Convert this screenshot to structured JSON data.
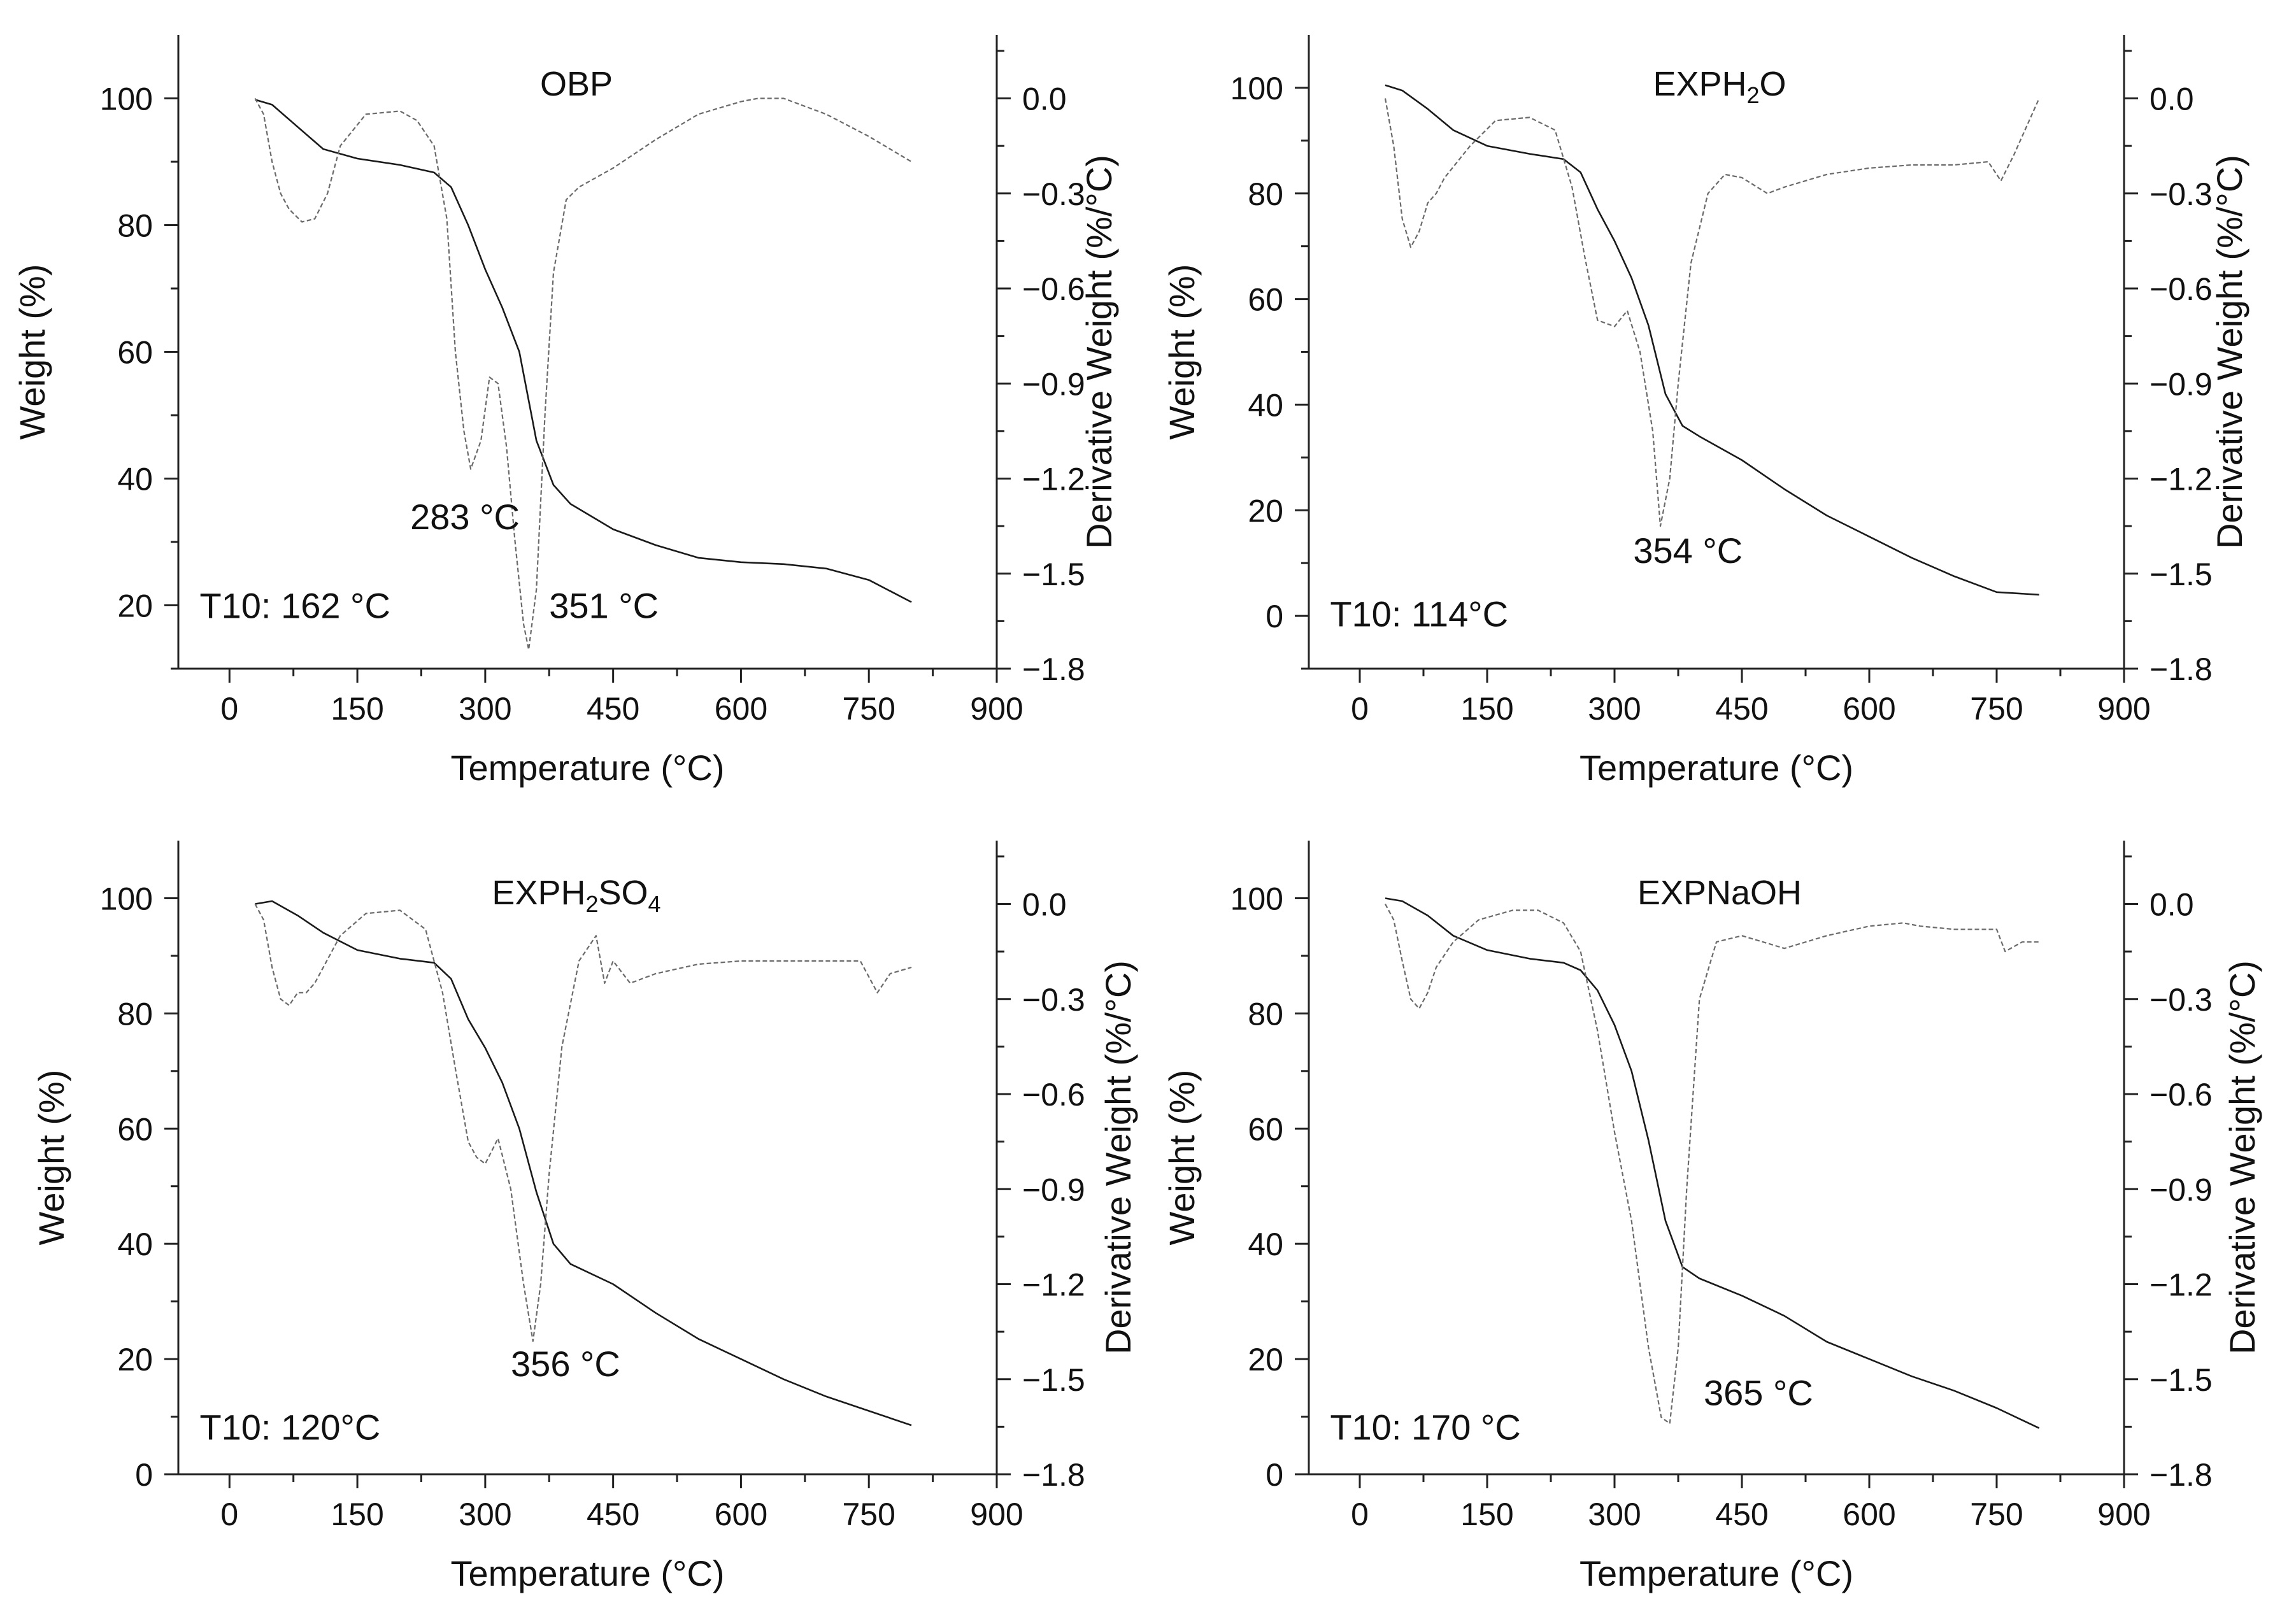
{
  "figure": {
    "x_label": "Temperature (°C)",
    "y_left_label": "Weight (%)",
    "y_right_label": "Derivative Weight (%/°C)"
  },
  "chart_data": [
    {
      "type": "line",
      "title": "OBP",
      "title_parts": [
        {
          "t": "OBP",
          "sub": false
        }
      ],
      "xlabel": "Temperature (°C)",
      "ylabel": "Weight (%)",
      "y2label": "Derivative Weight (%/°C)",
      "xlim": [
        -60,
        900
      ],
      "ylim": [
        10,
        110
      ],
      "y2lim": [
        -1.8,
        0.2
      ],
      "xticks": [
        0,
        150,
        300,
        450,
        600,
        750,
        900
      ],
      "yticks": [
        20,
        40,
        60,
        80,
        100
      ],
      "y2ticks": [
        0.0,
        -0.3,
        -0.6,
        -0.9,
        -1.2,
        -1.5,
        -1.8
      ],
      "series": [
        {
          "name": "Weight",
          "axis": "left",
          "x": [
            30,
            50,
            80,
            110,
            150,
            200,
            240,
            260,
            280,
            300,
            320,
            340,
            360,
            380,
            400,
            450,
            500,
            550,
            600,
            650,
            700,
            750,
            800
          ],
          "y": [
            99.8,
            99,
            95.5,
            92,
            90.5,
            89.5,
            88.3,
            86,
            80,
            73,
            67,
            60,
            46,
            39,
            36,
            32,
            29.5,
            27.5,
            26.8,
            26.5,
            25.8,
            24,
            20.5
          ]
        },
        {
          "name": "Derivative Weight",
          "axis": "right",
          "x": [
            30,
            40,
            50,
            60,
            70,
            85,
            100,
            115,
            130,
            160,
            200,
            220,
            240,
            255,
            265,
            275,
            283,
            295,
            305,
            315,
            325,
            335,
            345,
            351,
            360,
            370,
            380,
            395,
            410,
            450,
            500,
            550,
            600,
            620,
            650,
            700,
            750,
            800
          ],
          "y": [
            0.0,
            -0.05,
            -0.2,
            -0.3,
            -0.35,
            -0.39,
            -0.38,
            -0.3,
            -0.15,
            -0.05,
            -0.04,
            -0.07,
            -0.15,
            -0.38,
            -0.8,
            -1.05,
            -1.17,
            -1.08,
            -0.88,
            -0.9,
            -1.1,
            -1.4,
            -1.66,
            -1.74,
            -1.55,
            -1.0,
            -0.55,
            -0.32,
            -0.28,
            -0.22,
            -0.13,
            -0.05,
            -0.01,
            0.0,
            0.0,
            -0.05,
            -0.12,
            -0.2
          ]
        }
      ],
      "annotations": [
        {
          "text": "283 °C",
          "x": 212,
          "y": 32,
          "axis": "left"
        },
        {
          "text": "351 °C",
          "x": 375,
          "y": 18,
          "axis": "left"
        },
        {
          "text": "T10: 162 °C",
          "x": -35,
          "y": 18,
          "axis": "left"
        }
      ]
    },
    {
      "type": "line",
      "title": "EXPH2O",
      "title_parts": [
        {
          "t": "EXPH",
          "sub": false
        },
        {
          "t": "2",
          "sub": true
        },
        {
          "t": "O",
          "sub": false
        }
      ],
      "xlabel": "Temperature (°C)",
      "ylabel": "Weight (%)",
      "y2label": "Derivative Weight (%/°C)",
      "xlim": [
        -60,
        900
      ],
      "ylim": [
        -10,
        110
      ],
      "y2lim": [
        -1.8,
        0.2
      ],
      "xticks": [
        0,
        150,
        300,
        450,
        600,
        750,
        900
      ],
      "yticks": [
        0,
        20,
        40,
        60,
        80,
        100
      ],
      "y2ticks": [
        0.0,
        -0.3,
        -0.6,
        -0.9,
        -1.2,
        -1.5,
        -1.8
      ],
      "series": [
        {
          "name": "Weight",
          "axis": "left",
          "x": [
            30,
            50,
            80,
            110,
            150,
            200,
            240,
            260,
            280,
            300,
            320,
            340,
            360,
            380,
            400,
            450,
            500,
            550,
            600,
            650,
            700,
            750,
            800
          ],
          "y": [
            100.5,
            99.5,
            96,
            92,
            89,
            87.5,
            86.5,
            84,
            77,
            71,
            64,
            55,
            42,
            36,
            34,
            29.5,
            24,
            19,
            15,
            11,
            7.5,
            4.5,
            4
          ]
        },
        {
          "name": "Derivative Weight",
          "axis": "right",
          "x": [
            30,
            40,
            50,
            60,
            70,
            80,
            90,
            100,
            130,
            160,
            200,
            230,
            250,
            265,
            280,
            300,
            315,
            330,
            345,
            354,
            365,
            375,
            390,
            410,
            430,
            450,
            480,
            500,
            550,
            600,
            650,
            700,
            740,
            755,
            770,
            800
          ],
          "y": [
            0.0,
            -0.15,
            -0.38,
            -0.47,
            -0.42,
            -0.33,
            -0.3,
            -0.25,
            -0.15,
            -0.07,
            -0.06,
            -0.1,
            -0.28,
            -0.5,
            -0.7,
            -0.72,
            -0.67,
            -0.8,
            -1.05,
            -1.35,
            -1.2,
            -0.9,
            -0.52,
            -0.3,
            -0.24,
            -0.25,
            -0.3,
            -0.28,
            -0.24,
            -0.22,
            -0.21,
            -0.21,
            -0.2,
            -0.26,
            -0.18,
            0.0
          ]
        }
      ],
      "annotations": [
        {
          "text": "354 °C",
          "x": 322,
          "y": 10,
          "axis": "left"
        },
        {
          "text": "T10: 114°C",
          "x": -35,
          "y": -2,
          "axis": "left"
        }
      ]
    },
    {
      "type": "line",
      "title": "EXPH2SO4",
      "title_parts": [
        {
          "t": "EXPH",
          "sub": false
        },
        {
          "t": "2",
          "sub": true
        },
        {
          "t": "SO",
          "sub": false
        },
        {
          "t": "4",
          "sub": true
        }
      ],
      "xlabel": "Temperature (°C)",
      "ylabel": "Weight (%)",
      "y2label": "Derivative Weight (%/°C)",
      "xlim": [
        -60,
        900
      ],
      "ylim": [
        0,
        110
      ],
      "y2lim": [
        -1.8,
        0.2
      ],
      "xticks": [
        0,
        150,
        300,
        450,
        600,
        750,
        900
      ],
      "yticks": [
        0,
        20,
        40,
        60,
        80,
        100
      ],
      "y2ticks": [
        0.0,
        -0.3,
        -0.6,
        -0.9,
        -1.2,
        -1.5,
        -1.8
      ],
      "series": [
        {
          "name": "Weight",
          "axis": "left",
          "x": [
            30,
            50,
            80,
            110,
            150,
            200,
            240,
            260,
            280,
            300,
            320,
            340,
            360,
            380,
            400,
            450,
            500,
            550,
            600,
            650,
            700,
            750,
            800
          ],
          "y": [
            99,
            99.5,
            97,
            94,
            91,
            89.5,
            88.8,
            86,
            79,
            74,
            68,
            60,
            49,
            40,
            36.5,
            33,
            28,
            23.5,
            20,
            16.5,
            13.5,
            11,
            8.5
          ]
        },
        {
          "name": "Derivative Weight",
          "axis": "right",
          "x": [
            30,
            40,
            50,
            60,
            70,
            80,
            90,
            100,
            130,
            160,
            200,
            230,
            250,
            265,
            280,
            290,
            300,
            315,
            330,
            345,
            356,
            365,
            375,
            390,
            410,
            430,
            440,
            450,
            470,
            500,
            550,
            600,
            650,
            700,
            740,
            760,
            775,
            800
          ],
          "y": [
            0.0,
            -0.05,
            -0.2,
            -0.3,
            -0.32,
            -0.28,
            -0.28,
            -0.25,
            -0.1,
            -0.03,
            -0.02,
            -0.08,
            -0.28,
            -0.52,
            -0.75,
            -0.8,
            -0.82,
            -0.74,
            -0.9,
            -1.2,
            -1.38,
            -1.2,
            -0.85,
            -0.45,
            -0.18,
            -0.1,
            -0.25,
            -0.18,
            -0.25,
            -0.22,
            -0.19,
            -0.18,
            -0.18,
            -0.18,
            -0.18,
            -0.28,
            -0.22,
            -0.2
          ]
        }
      ],
      "annotations": [
        {
          "text": "356 °C",
          "x": 330,
          "y": 17,
          "axis": "left"
        },
        {
          "text": "T10: 120°C",
          "x": -35,
          "y": 6,
          "axis": "left"
        }
      ]
    },
    {
      "type": "line",
      "title": "EXPNaOH",
      "title_parts": [
        {
          "t": "EXPNaOH",
          "sub": false
        }
      ],
      "xlabel": "Temperature (°C)",
      "ylabel": "Weight (%)",
      "y2label": "Derivative Weight (%/°C)",
      "xlim": [
        -60,
        900
      ],
      "ylim": [
        0,
        110
      ],
      "y2lim": [
        -1.8,
        0.2
      ],
      "xticks": [
        0,
        150,
        300,
        450,
        600,
        750,
        900
      ],
      "yticks": [
        0,
        20,
        40,
        60,
        80,
        100
      ],
      "y2ticks": [
        0.0,
        -0.3,
        -0.6,
        -0.9,
        -1.2,
        -1.5,
        -1.8
      ],
      "series": [
        {
          "name": "Weight",
          "axis": "left",
          "x": [
            30,
            50,
            80,
            110,
            150,
            200,
            240,
            260,
            280,
            300,
            320,
            340,
            360,
            380,
            400,
            450,
            500,
            550,
            600,
            650,
            700,
            750,
            800
          ],
          "y": [
            100,
            99.5,
            97,
            93.5,
            91,
            89.5,
            88.8,
            87.5,
            84,
            78,
            70,
            58,
            44,
            36,
            34,
            31,
            27.5,
            23,
            20,
            17,
            14.5,
            11.5,
            8
          ]
        },
        {
          "name": "Derivative Weight",
          "axis": "right",
          "x": [
            30,
            40,
            50,
            60,
            70,
            80,
            90,
            110,
            140,
            180,
            210,
            240,
            260,
            280,
            300,
            320,
            340,
            355,
            365,
            375,
            385,
            400,
            420,
            450,
            500,
            550,
            600,
            640,
            660,
            700,
            750,
            760,
            780,
            800
          ],
          "y": [
            0.0,
            -0.05,
            -0.18,
            -0.3,
            -0.33,
            -0.28,
            -0.2,
            -0.12,
            -0.05,
            -0.02,
            -0.02,
            -0.06,
            -0.15,
            -0.4,
            -0.72,
            -1.0,
            -1.4,
            -1.62,
            -1.64,
            -1.4,
            -0.9,
            -0.3,
            -0.12,
            -0.1,
            -0.14,
            -0.1,
            -0.07,
            -0.06,
            -0.07,
            -0.08,
            -0.08,
            -0.15,
            -0.12,
            -0.12
          ]
        }
      ],
      "annotations": [
        {
          "text": "365 °C",
          "x": 405,
          "y": 12,
          "axis": "left"
        },
        {
          "text": "T10: 170 °C",
          "x": -35,
          "y": 6,
          "axis": "left"
        }
      ]
    }
  ]
}
